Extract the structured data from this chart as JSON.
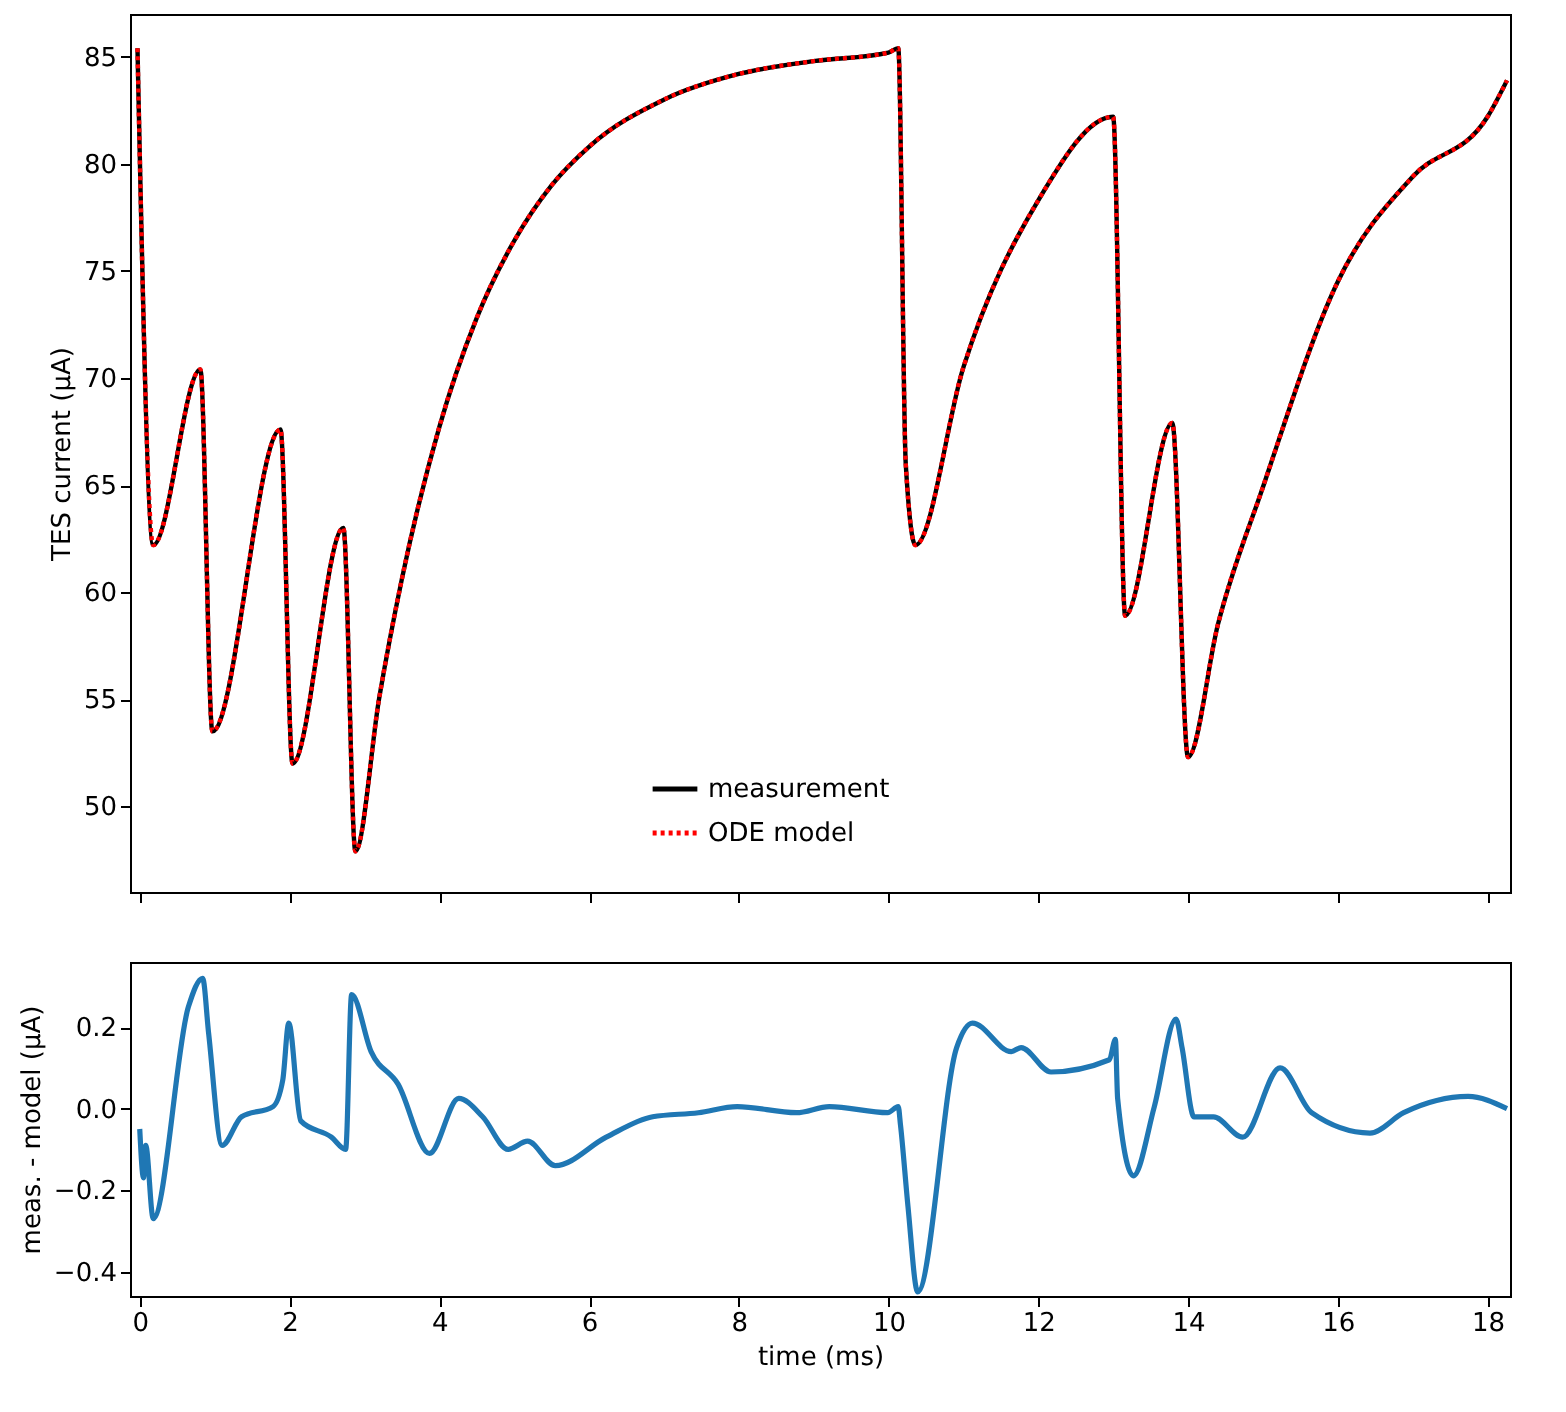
{
  "chart_data": [
    {
      "type": "line",
      "ylabel": "TES current (μA)",
      "xlim": [
        -0.13,
        18.3
      ],
      "xticks": [
        0,
        2,
        4,
        6,
        8,
        10,
        12,
        14,
        16,
        18
      ],
      "ylim": [
        46,
        87
      ],
      "yticks": [
        50,
        55,
        60,
        65,
        70,
        75,
        80,
        85
      ],
      "tick_labels": "y",
      "legend": "bottom",
      "grid": false,
      "x": [
        -0.03,
        0.18,
        0.81,
        0.97,
        1.88,
        2.04,
        2.72,
        2.88,
        3.2,
        3.5,
        4.0,
        4.5,
        5.0,
        5.5,
        6.0,
        7.0,
        8.0,
        9.0,
        10.0,
        10.13,
        10.23,
        10.36,
        11.0,
        12.0,
        13.0,
        13.16,
        13.79,
        14.0,
        14.4,
        15.0,
        16.0,
        17.0,
        18.0,
        18.26
      ],
      "series": [
        {
          "name": "measurement",
          "color": "#000000",
          "line_style": "solid",
          "values": [
            85.4,
            62.2,
            70.4,
            53.5,
            67.6,
            52.0,
            63.0,
            47.9,
            55.1,
            60.6,
            67.7,
            72.8,
            76.4,
            79.0,
            80.8,
            83.0,
            84.2,
            84.8,
            85.2,
            85.4,
            66.0,
            62.2,
            70.5,
            78.3,
            82.2,
            58.9,
            67.9,
            52.3,
            58.5,
            64.9,
            74.5,
            79.4,
            82.2,
            83.9
          ]
        },
        {
          "name": "ODE model",
          "color": "#ff0000",
          "line_style": "dotted",
          "values": [
            85.4,
            62.2,
            70.4,
            53.5,
            67.6,
            52.0,
            63.0,
            47.9,
            55.1,
            60.6,
            67.7,
            72.8,
            76.4,
            79.0,
            80.8,
            83.0,
            84.2,
            84.8,
            85.2,
            85.4,
            66.0,
            62.2,
            70.5,
            78.3,
            82.2,
            58.9,
            67.9,
            52.3,
            58.5,
            64.9,
            74.5,
            79.4,
            82.2,
            83.9
          ]
        }
      ]
    },
    {
      "type": "line",
      "xlabel": "time (ms)",
      "ylabel": "meas. - model (μA)",
      "xlim": [
        -0.13,
        18.3
      ],
      "xticks": [
        0,
        2,
        4,
        6,
        8,
        10,
        12,
        14,
        16,
        18
      ],
      "ylim": [
        -0.46,
        0.36
      ],
      "yticks": [
        -0.4,
        -0.2,
        {
          "value": 0,
          "label": "0.0"
        },
        0.2
      ],
      "grid": false,
      "x": [
        0,
        0.05,
        0.08,
        0.18,
        0.65,
        0.84,
        0.92,
        1.1,
        1.36,
        1.78,
        1.91,
        1.99,
        2.15,
        2.56,
        2.75,
        2.83,
        3.09,
        3.45,
        3.87,
        4.26,
        4.58,
        4.92,
        5.18,
        5.55,
        6.23,
        6.85,
        7.46,
        7.98,
        8.77,
        9.21,
        9.99,
        10.13,
        10.16,
        10.26,
        10.39,
        10.91,
        11.12,
        11.64,
        11.77,
        12.17,
        12.95,
        13.03,
        13.06,
        13.27,
        13.55,
        13.84,
        13.92,
        14.08,
        14.34,
        14.73,
        15.23,
        15.65,
        16.43,
        16.88,
        17.74,
        18.26
      ],
      "series": [
        {
          "color": "#1f77b4",
          "line_style": "solid",
          "values": [
            -0.05,
            -0.17,
            -0.09,
            -0.27,
            0.25,
            0.32,
            0.185,
            -0.09,
            -0.02,
            0.005,
            0.07,
            0.21,
            -0.03,
            -0.07,
            -0.1,
            0.28,
            0.14,
            0.06,
            -0.11,
            0.025,
            -0.02,
            -0.1,
            -0.08,
            -0.14,
            -0.07,
            -0.02,
            -0.01,
            0.005,
            -0.01,
            0.005,
            -0.01,
            0.005,
            -0.04,
            -0.24,
            -0.45,
            0.15,
            0.21,
            0.14,
            0.15,
            0.09,
            0.12,
            0.17,
            0.025,
            -0.165,
            0.005,
            0.22,
            0.15,
            -0.02,
            -0.02,
            -0.07,
            0.1,
            -0.01,
            -0.06,
            -0.01,
            0.03,
            0.0
          ]
        }
      ]
    }
  ]
}
